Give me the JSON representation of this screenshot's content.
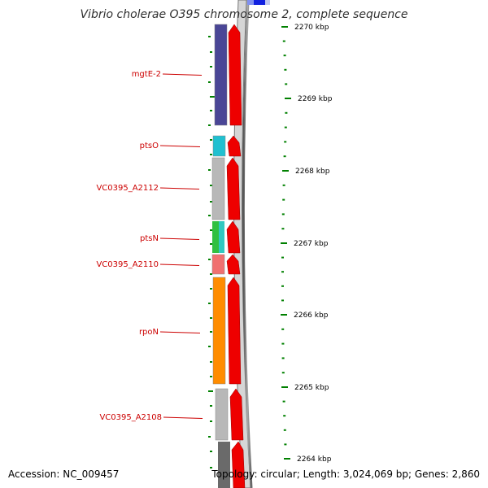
{
  "title": "Vibrio cholerae O395 chromosome 2, complete sequence",
  "footer": {
    "accession": "Accession: NC_009457",
    "topology": "Topology: circular; Length: 3,024,069 bp; Genes: 2,860"
  },
  "scale": {
    "ticks": [
      "2270 kbp",
      "2269 kbp",
      "2268 kbp",
      "2267 kbp",
      "2266 kbp",
      "2265 kbp",
      "2264 kbp"
    ],
    "tick_color": "#008000"
  },
  "genes": [
    {
      "name": "mgtE-2",
      "color": "#4a4696"
    },
    {
      "name": "ptsO",
      "color": "#20c0d0"
    },
    {
      "name": "VC0395_A2112",
      "color": "#b8b8b8"
    },
    {
      "name": "ptsN",
      "color": "#30c040"
    },
    {
      "name": "VC0395_A2110",
      "color": "#f07070"
    },
    {
      "name": "rpoN",
      "color": "#ff8c00"
    },
    {
      "name": "VC0395_A2108",
      "color": "#b8b8b8"
    }
  ],
  "colors": {
    "label": "#cc0000",
    "arrow": "#ee0000",
    "backbone": "#888888",
    "top_feature": "#1020e0"
  }
}
